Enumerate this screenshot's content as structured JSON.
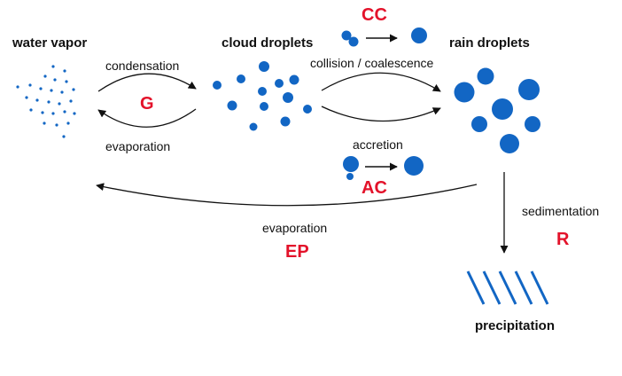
{
  "colors": {
    "droplet": "#1266c4",
    "code": "#e3122a",
    "arrow": "#111111",
    "text": "#111111"
  },
  "headers": {
    "water_vapor": "water vapor",
    "cloud_droplets": "cloud droplets",
    "rain_droplets": "rain droplets",
    "precipitation": "precipitation"
  },
  "processes": {
    "condensation": "condensation",
    "evaporation_cloud": "evaporation",
    "collision": "collision / coalescence",
    "accretion": "accretion",
    "evaporation_rain": "evaporation",
    "sedimentation": "sedimentation"
  },
  "codes": {
    "G": "G",
    "CC": "CC",
    "AC": "AC",
    "EP": "EP",
    "R": "R"
  }
}
